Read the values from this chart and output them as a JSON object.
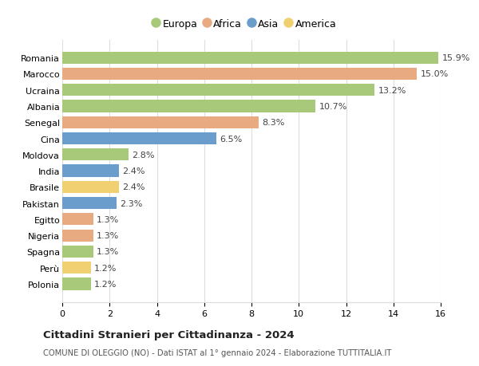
{
  "countries": [
    "Polonia",
    "Perù",
    "Spagna",
    "Nigeria",
    "Egitto",
    "Pakistan",
    "Brasile",
    "India",
    "Moldova",
    "Cina",
    "Senegal",
    "Albania",
    "Ucraina",
    "Marocco",
    "Romania"
  ],
  "values": [
    1.2,
    1.2,
    1.3,
    1.3,
    1.3,
    2.3,
    2.4,
    2.4,
    2.8,
    6.5,
    8.3,
    10.7,
    13.2,
    15.0,
    15.9
  ],
  "continents": [
    "Europa",
    "America",
    "Europa",
    "Africa",
    "Africa",
    "Asia",
    "America",
    "Asia",
    "Europa",
    "Asia",
    "Africa",
    "Europa",
    "Europa",
    "Africa",
    "Europa"
  ],
  "continent_colors": {
    "Europa": "#a8c87a",
    "Africa": "#e8aa80",
    "Asia": "#6a9dcc",
    "America": "#f0d070"
  },
  "title": "Cittadini Stranieri per Cittadinanza - 2024",
  "subtitle": "COMUNE DI OLEGGIO (NO) - Dati ISTAT al 1° gennaio 2024 - Elaborazione TUTTITALIA.IT",
  "xlim": [
    0,
    16
  ],
  "xticks": [
    0,
    2,
    4,
    6,
    8,
    10,
    12,
    14,
    16
  ],
  "background_color": "#ffffff",
  "grid_color": "#dddddd",
  "legend_order": [
    "Europa",
    "Africa",
    "Asia",
    "America"
  ],
  "label_fontsize": 8.0,
  "tick_fontsize": 8.0,
  "bar_height": 0.75
}
